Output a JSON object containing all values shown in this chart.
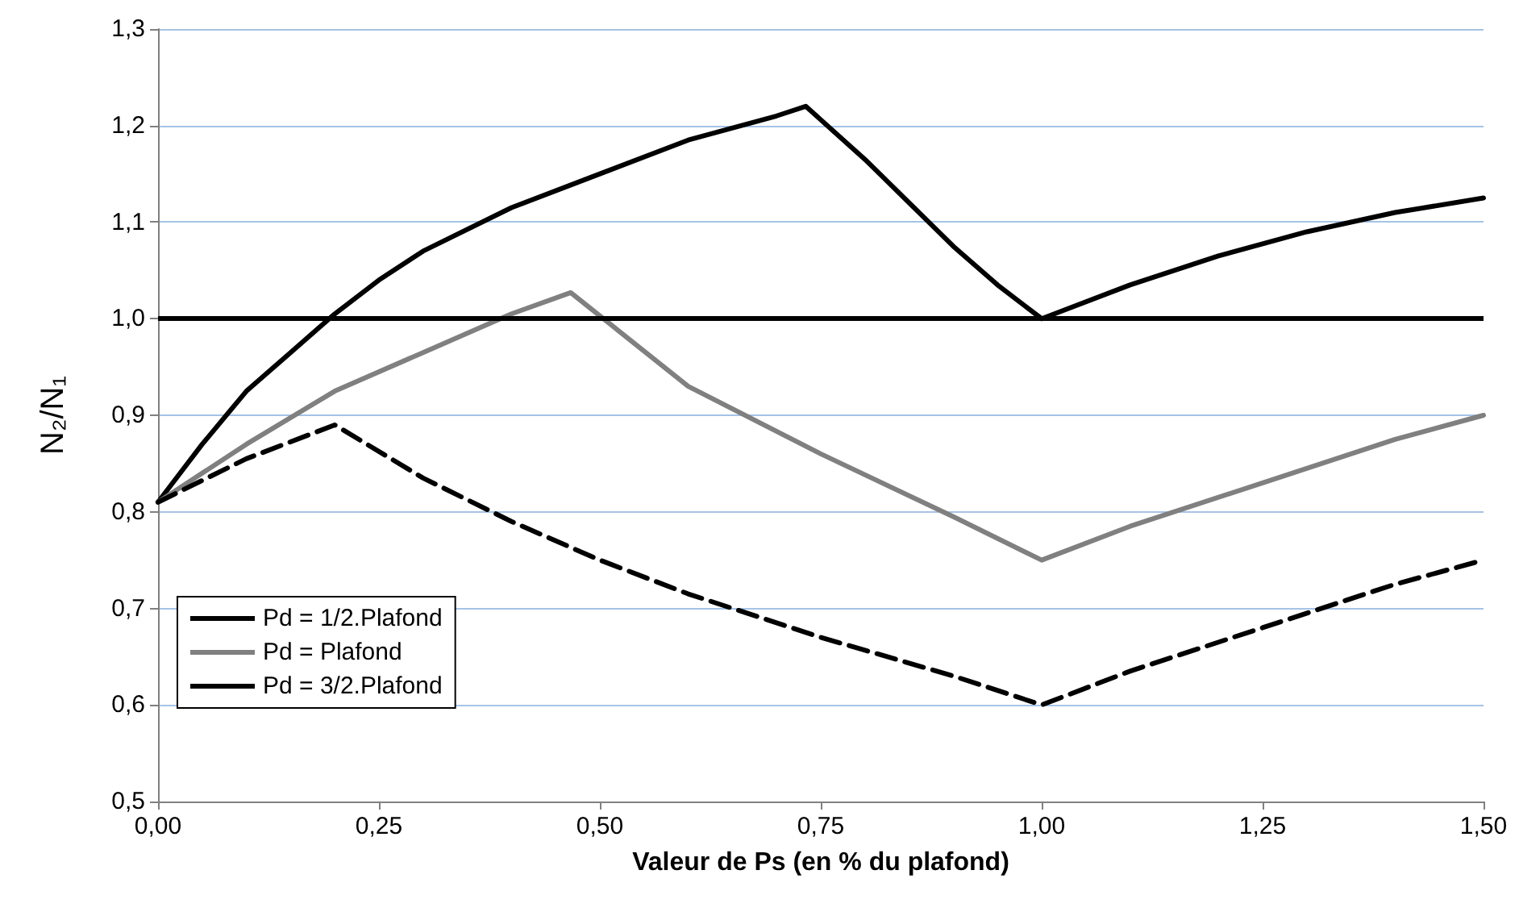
{
  "chart_data": {
    "type": "line",
    "xlabel": "Valeur de Ps (en % du plafond)",
    "ylabel": "N₂/N₁",
    "xlim": [
      0,
      1.5
    ],
    "ylim": [
      0.5,
      1.3
    ],
    "xticks": [
      {
        "value": 0,
        "label": "0,00"
      },
      {
        "value": 0.25,
        "label": "0,25"
      },
      {
        "value": 0.5,
        "label": "0,50"
      },
      {
        "value": 0.75,
        "label": "0,75"
      },
      {
        "value": 1,
        "label": "1,00"
      },
      {
        "value": 1.25,
        "label": "1,25"
      },
      {
        "value": 1.5,
        "label": "1,50"
      }
    ],
    "yticks": [
      {
        "value": 0.5,
        "label": "0,5"
      },
      {
        "value": 0.6,
        "label": "0,6"
      },
      {
        "value": 0.7,
        "label": "0,7"
      },
      {
        "value": 0.8,
        "label": "0,8"
      },
      {
        "value": 0.9,
        "label": "0,9"
      },
      {
        "value": 1,
        "label": "1,0"
      },
      {
        "value": 1.1,
        "label": "1,1"
      },
      {
        "value": 1.2,
        "label": "1,2"
      },
      {
        "value": 1.3,
        "label": "1,3"
      }
    ],
    "grid": "y",
    "legend": "left",
    "marker": "none",
    "ref_lines": [
      {
        "axis": "y",
        "value": 1,
        "color": "#000000",
        "line_style": "solid"
      }
    ],
    "series": [
      {
        "name": "Pd = 1/2.Plafond",
        "color": "#000000",
        "line_style": "solid",
        "x": [
          0,
          0.05,
          0.1,
          0.15,
          0.2,
          0.25,
          0.3,
          0.4,
          0.5,
          0.6,
          0.7,
          0.733,
          0.8,
          0.9,
          0.95,
          1,
          1.1,
          1.2,
          1.3,
          1.4,
          1.5
        ],
        "values": [
          0.81,
          0.87,
          0.925,
          0.965,
          1.005,
          1.04,
          1.07,
          1.115,
          1.15,
          1.185,
          1.21,
          1.22,
          1.165,
          1.075,
          1.035,
          1,
          1.035,
          1.065,
          1.09,
          1.11,
          1.125
        ]
      },
      {
        "name": "Pd = Plafond",
        "color": "#808080",
        "line_style": "solid",
        "x": [
          0,
          0.1,
          0.2,
          0.3,
          0.4,
          0.467,
          0.6,
          0.75,
          0.9,
          1,
          1.1,
          1.25,
          1.4,
          1.5
        ],
        "values": [
          0.81,
          0.87,
          0.925,
          0.965,
          1.005,
          1.027,
          0.93,
          0.86,
          0.795,
          0.75,
          0.785,
          0.83,
          0.875,
          0.9
        ]
      },
      {
        "name": "Pd = 3/2.Plafond",
        "color": "#000000",
        "line_style": "dashed",
        "x": [
          0,
          0.1,
          0.2,
          0.3,
          0.4,
          0.5,
          0.6,
          0.75,
          0.9,
          1,
          1.1,
          1.25,
          1.4,
          1.5
        ],
        "values": [
          0.81,
          0.855,
          0.89,
          0.835,
          0.79,
          0.75,
          0.715,
          0.67,
          0.63,
          0.6,
          0.635,
          0.68,
          0.725,
          0.75
        ]
      }
    ]
  }
}
